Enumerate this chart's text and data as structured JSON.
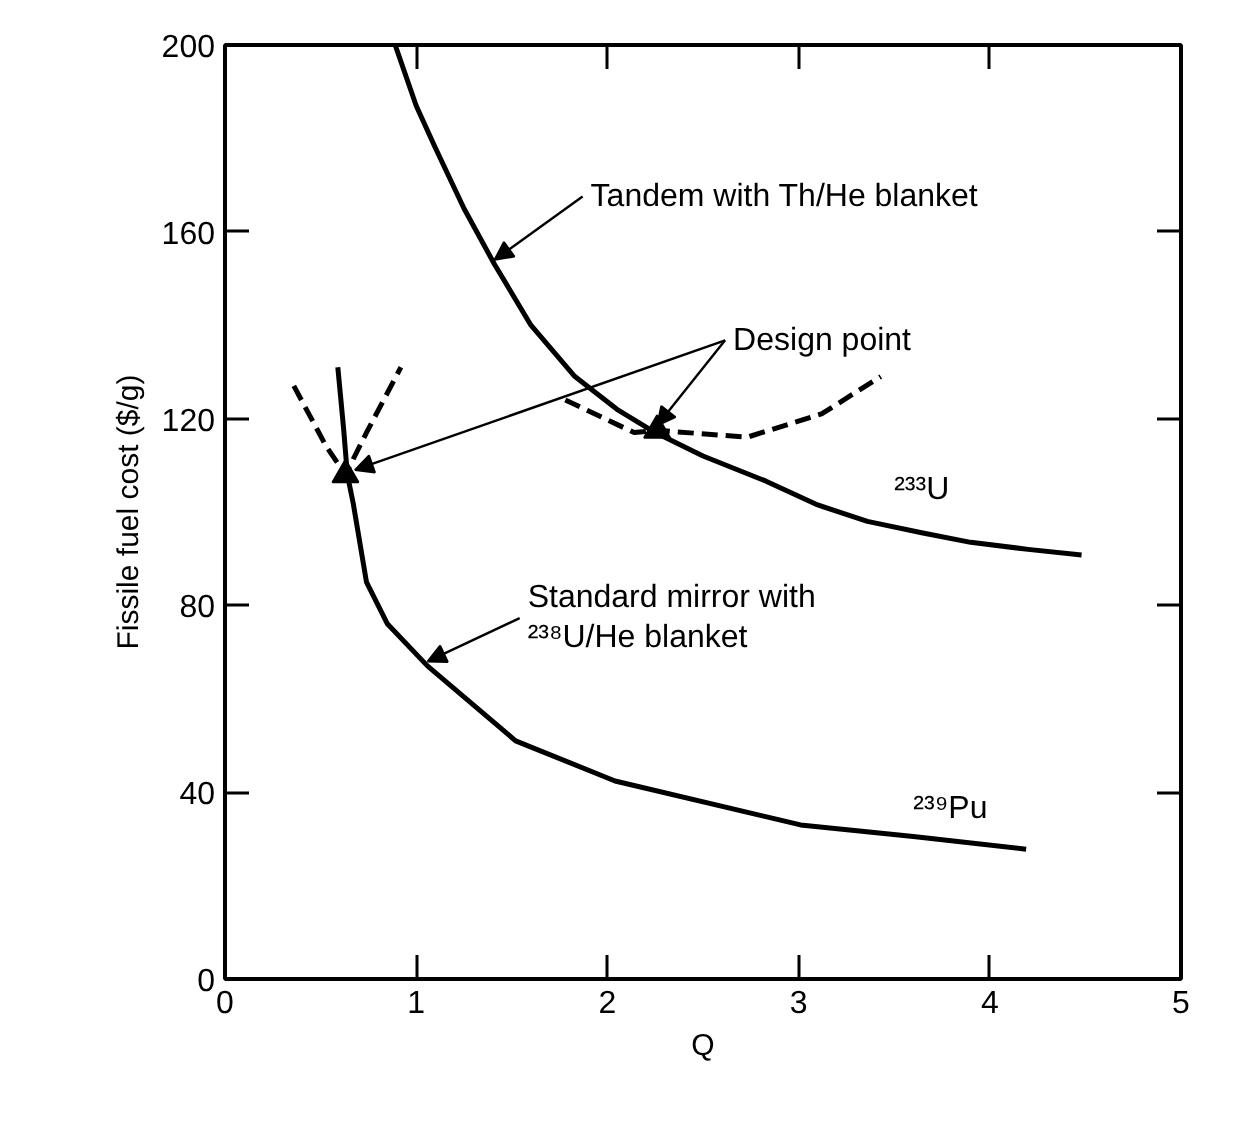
{
  "chart_data": {
    "type": "line",
    "xlabel": "Q",
    "ylabel": "Fissile fuel cost ($/g)",
    "xlim": [
      0,
      5
    ],
    "ylim": [
      0,
      200
    ],
    "xticks": [
      0,
      1,
      2,
      3,
      4,
      5
    ],
    "yticks": [
      0,
      40,
      80,
      120,
      160,
      200
    ],
    "series": [
      {
        "color": "#000000",
        "line_style": "solid",
        "x": [
          0.89,
          1.0,
          1.1,
          1.25,
          1.41,
          1.6,
          1.83,
          2.05,
          2.25,
          2.5,
          2.83,
          3.1,
          3.36,
          3.65,
          3.9,
          4.2,
          4.48
        ],
        "values": [
          200,
          187,
          178,
          165,
          153,
          140,
          129,
          122,
          117,
          112,
          106.6,
          101.5,
          98,
          95.5,
          93.5,
          92,
          90.8
        ]
      },
      {
        "color": "#000000",
        "line_style": "solid",
        "x": [
          0.59,
          0.62,
          0.64,
          0.67,
          0.74,
          0.85,
          1.06,
          1.52,
          2.04,
          3.01,
          3.6,
          4.19
        ],
        "values": [
          131,
          118,
          108,
          102,
          85,
          76,
          67,
          51,
          42.4,
          33,
          30.5,
          27.8
        ]
      },
      {
        "color": "#000000",
        "line_style": "dashed",
        "x": [
          0.36,
          0.53,
          0.63,
          0.74,
          0.92
        ],
        "values": [
          127,
          114,
          108,
          117,
          131
        ]
      },
      {
        "color": "#000000",
        "line_style": "dashed",
        "x": [
          1.78,
          2.14,
          2.26,
          2.73,
          3.12,
          3.43
        ],
        "values": [
          124,
          117,
          117.5,
          116,
          121,
          129
        ]
      },
      {
        "type": "scatter",
        "marker": "triangle",
        "color": "#000000",
        "x": [
          0.63,
          2.26
        ],
        "values": [
          108,
          117.5
        ]
      }
    ],
    "annotations": [
      {
        "text": "Tandem with  Th/He blanket",
        "x": 1.41,
        "y": 153
      },
      {
        "text": "Design point",
        "x": 2.26,
        "y": 117.5
      },
      {
        "text": "Standard mirror with\n²³⁸U/He blanket",
        "x": 1.06,
        "y": 67
      },
      {
        "text": "²³³U",
        "x": 3.5,
        "y": 98
      },
      {
        "text": "²³⁹Pu",
        "x": 3.6,
        "y": 31
      }
    ]
  }
}
